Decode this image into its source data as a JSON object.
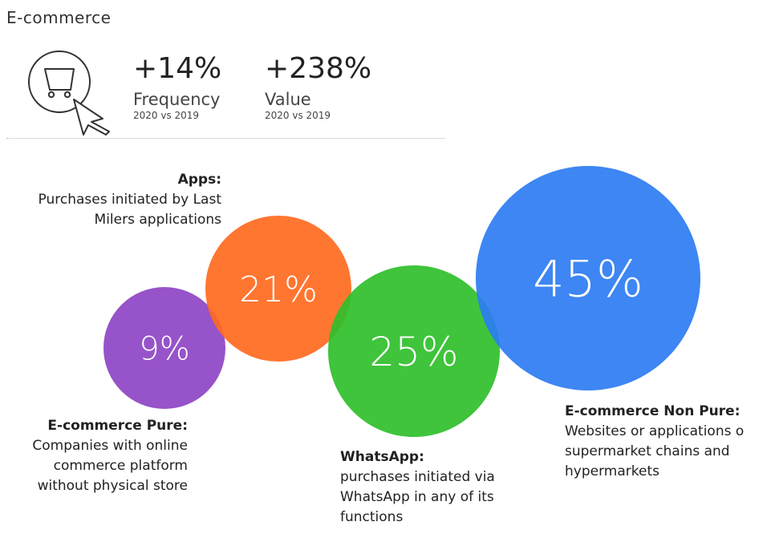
{
  "title": "E-commerce",
  "icons": {
    "cart": "shopping-cart-icon",
    "cursor": "cursor-arrow-icon"
  },
  "stats": {
    "frequency": {
      "value": "+14%",
      "label": "Frequency",
      "period": "2020 vs 2019"
    },
    "value": {
      "value": "+238%",
      "label": "Value",
      "period": "2020 vs 2019"
    }
  },
  "chart_data": {
    "type": "bubble",
    "categories": [
      "E-commerce Pure",
      "Apps",
      "WhatsApp",
      "E-commerce Non Pure"
    ],
    "values": [
      9,
      21,
      25,
      45
    ],
    "labels": [
      "9%",
      "21%",
      "25%",
      "45%"
    ],
    "colors": [
      "#8e44c4",
      "#ff6a1f",
      "#2fbf2a",
      "#2d7cf2"
    ]
  },
  "descriptions": {
    "apps": {
      "head": "Apps:",
      "body": "Purchases initiated by Last Milers applications"
    },
    "pure": {
      "head": "E-commerce Pure:",
      "body": "Companies with online commerce platform without physical store"
    },
    "whatsapp": {
      "head": "WhatsApp:",
      "body": "purchases initiated via WhatsApp in any of its functions"
    },
    "nonpure": {
      "head": "E-commerce Non Pure:",
      "body": "Websites or applications o supermarket chains and hypermarkets"
    }
  }
}
